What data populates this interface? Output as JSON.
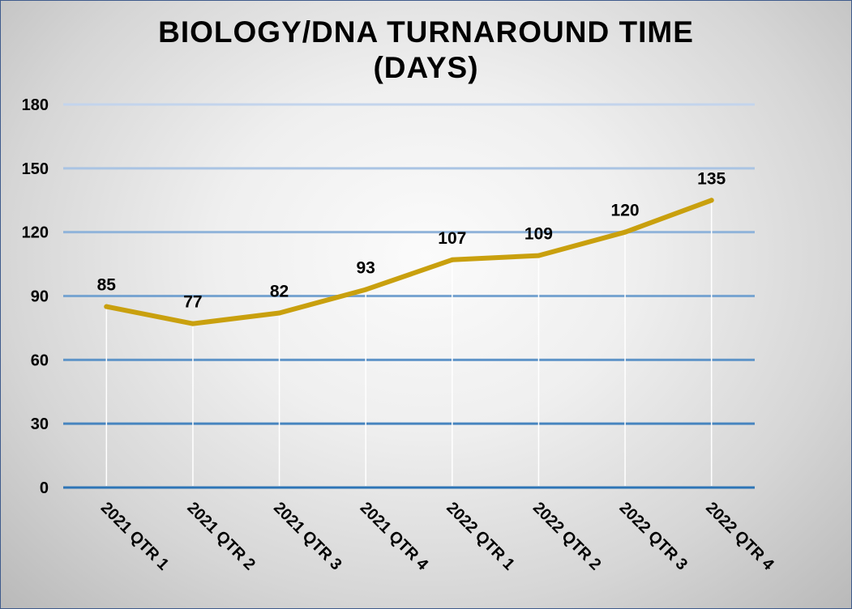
{
  "chart_data": {
    "type": "line",
    "title_line1": "BIOLOGY/DNA TURNAROUND TIME",
    "title_line2": "(DAYS)",
    "categories": [
      "2021 QTR 1",
      "2021 QTR 2",
      "2021 QTR 3",
      "2021 QTR 4",
      "2022 QTR 1",
      "2022 QTR 2",
      "2022 QTR 3",
      "2022 QTR 4"
    ],
    "values": [
      85,
      77,
      82,
      93,
      107,
      109,
      120,
      135
    ],
    "yticks": [
      0,
      30,
      60,
      90,
      120,
      150,
      180
    ],
    "ylim": [
      0,
      180
    ],
    "xlabel": "",
    "ylabel": "",
    "grid": true,
    "legend": "none",
    "data_labels": true,
    "colors": {
      "line": "#c9a00e",
      "drop_lines": "#ffffff",
      "grid_top": "#c3d4ec",
      "grid_bottom": "#2e75b6",
      "frame": "#3f5b8c"
    }
  }
}
